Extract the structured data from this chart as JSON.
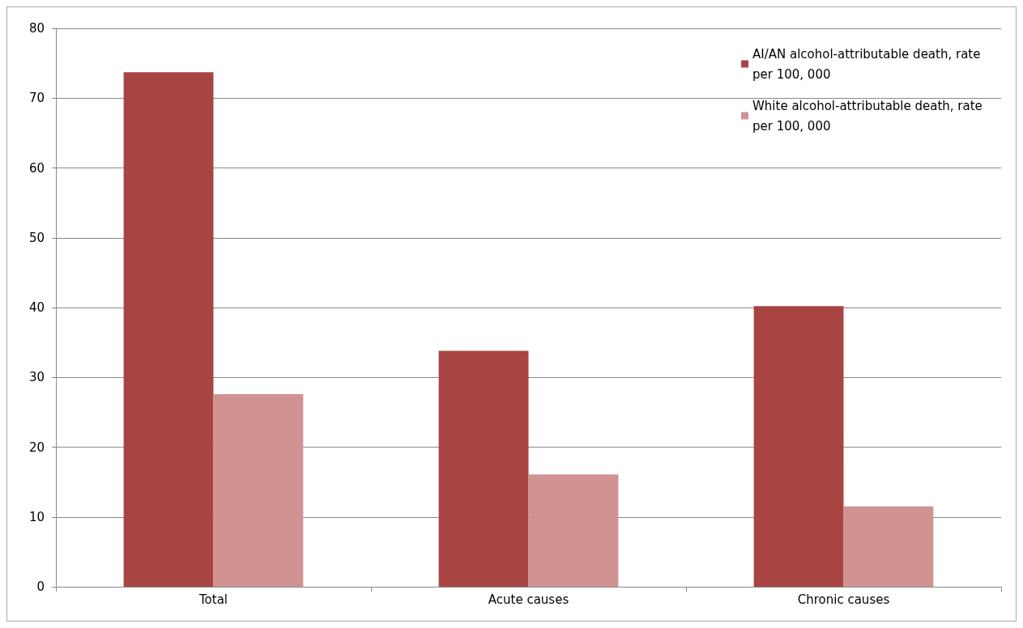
{
  "chart_data": {
    "type": "bar",
    "categories": [
      "Total",
      "Acute causes",
      "Chronic causes"
    ],
    "series": [
      {
        "name": "AI/AN alcohol-attributable death, rate per 100, 000",
        "color": "#a84543",
        "values": [
          73.7,
          33.8,
          40.2
        ]
      },
      {
        "name": "White alcohol-attributable death, rate per 100, 000",
        "color": "#d09392",
        "values": [
          27.6,
          16.1,
          11.5
        ]
      }
    ],
    "ylim": [
      0,
      80
    ],
    "yticks": [
      0,
      10,
      20,
      30,
      40,
      50,
      60,
      70,
      80
    ],
    "grid": "y",
    "legend": "top right"
  }
}
